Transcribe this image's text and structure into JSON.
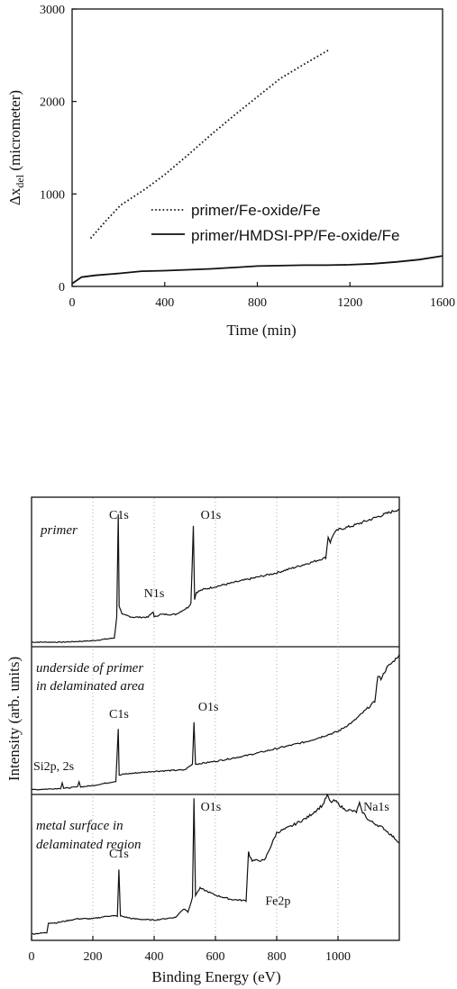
{
  "chart_data": [
    {
      "type": "line",
      "title": "",
      "xlabel": "Time (min)",
      "ylabel": "Δx_del (micrometer)",
      "ylabel_main": "Δx",
      "ylabel_sub": "del",
      "ylabel_unit": " (micrometer)",
      "xlim": [
        0,
        1600
      ],
      "ylim": [
        0,
        3000
      ],
      "xticks": [
        "0",
        "400",
        "800",
        "1200",
        "1600"
      ],
      "yticks": [
        "0",
        "1000",
        "2000",
        "3000"
      ],
      "legend_position": "center",
      "series": [
        {
          "name": "primer/Fe-oxide/Fe",
          "style": "dotted",
          "x": [
            80,
            150,
            210,
            260,
            320,
            400,
            500,
            600,
            700,
            800,
            900,
            1000,
            1110
          ],
          "y": [
            520,
            720,
            880,
            960,
            1060,
            1210,
            1420,
            1640,
            1850,
            2050,
            2250,
            2400,
            2560
          ]
        },
        {
          "name": "primer/HMDSI-PP/Fe-oxide/Fe",
          "style": "solid",
          "x": [
            0,
            40,
            100,
            200,
            300,
            400,
            500,
            600,
            700,
            800,
            900,
            1000,
            1100,
            1200,
            1300,
            1400,
            1500,
            1600
          ],
          "y": [
            30,
            100,
            120,
            140,
            165,
            170,
            180,
            190,
            205,
            220,
            225,
            230,
            230,
            235,
            245,
            265,
            290,
            330
          ]
        }
      ]
    },
    {
      "type": "line",
      "title": "",
      "xlabel": "Binding Energy (eV)",
      "ylabel": "Intensity (arb. units)",
      "xlim": [
        0,
        1200
      ],
      "xticks": [
        "0",
        "200",
        "400",
        "600",
        "800",
        "1000"
      ],
      "grid": "dotted vertical at 200, 400, 600, 800, 1000",
      "panels": [
        {
          "name": "primer",
          "x": [
            0,
            100,
            200,
            270,
            278,
            283,
            286,
            295,
            330,
            380,
            397,
            400,
            420,
            470,
            510,
            520,
            528,
            532,
            538,
            560,
            640,
            720,
            800,
            860,
            920,
            960,
            968,
            975,
            985,
            1000,
            1050,
            1100,
            1150,
            1200
          ],
          "y": [
            0.02,
            0.02,
            0.03,
            0.05,
            0.2,
            0.95,
            0.28,
            0.22,
            0.2,
            0.2,
            0.24,
            0.2,
            0.22,
            0.22,
            0.27,
            0.3,
            0.86,
            0.33,
            0.38,
            0.4,
            0.44,
            0.48,
            0.52,
            0.56,
            0.6,
            0.63,
            0.78,
            0.74,
            0.8,
            0.83,
            0.86,
            0.9,
            0.94,
            0.98
          ],
          "peaks": [
            {
              "label": "C1s",
              "x": 285
            },
            {
              "label": "N1s",
              "x": 400
            },
            {
              "label": "O1s",
              "x": 532
            }
          ]
        },
        {
          "name": "underside of primer in delaminated area",
          "x": [
            0,
            95,
            100,
            105,
            150,
            155,
            160,
            200,
            275,
            283,
            286,
            300,
            400,
            500,
            525,
            530,
            535,
            600,
            700,
            800,
            900,
            1000,
            1050,
            1100,
            1120,
            1130,
            1140,
            1160,
            1180,
            1200
          ],
          "y": [
            0.02,
            0.03,
            0.07,
            0.03,
            0.04,
            0.08,
            0.04,
            0.05,
            0.08,
            0.45,
            0.12,
            0.13,
            0.15,
            0.16,
            0.2,
            0.5,
            0.2,
            0.22,
            0.26,
            0.31,
            0.36,
            0.43,
            0.5,
            0.6,
            0.64,
            0.82,
            0.8,
            0.88,
            0.92,
            0.97
          ],
          "peaks": [
            {
              "label": "Si2p, 2s",
              "x": 125
            },
            {
              "label": "C1s",
              "x": 285
            },
            {
              "label": "O1s",
              "x": 530
            }
          ]
        },
        {
          "name": "metal surface in delaminated region",
          "x": [
            0,
            50,
            55,
            80,
            150,
            200,
            250,
            280,
            285,
            290,
            330,
            400,
            470,
            495,
            500,
            510,
            525,
            530,
            535,
            550,
            600,
            650,
            700,
            708,
            712,
            720,
            760,
            800,
            850,
            900,
            950,
            965,
            975,
            990,
            1020,
            1060,
            1070,
            1075,
            1080,
            1100,
            1150,
            1200
          ],
          "y": [
            0.02,
            0.03,
            0.1,
            0.1,
            0.13,
            0.13,
            0.15,
            0.15,
            0.48,
            0.15,
            0.13,
            0.12,
            0.14,
            0.2,
            0.2,
            0.18,
            0.28,
            1.0,
            0.3,
            0.35,
            0.3,
            0.27,
            0.26,
            0.62,
            0.58,
            0.55,
            0.55,
            0.75,
            0.8,
            0.86,
            0.95,
            1.02,
            0.97,
            0.98,
            0.92,
            0.9,
            0.96,
            0.92,
            0.9,
            0.84,
            0.78,
            0.68
          ],
          "peaks": [
            {
              "label": "C1s",
              "x": 285
            },
            {
              "label": "O1s",
              "x": 532
            },
            {
              "label": "Fe2p",
              "x": 710
            },
            {
              "label": "Na1s",
              "x": 1072
            }
          ]
        }
      ]
    }
  ],
  "panel_titles": [
    "primer",
    "underside of primer",
    "in delaminated area",
    "metal surface in",
    "delaminated region"
  ]
}
